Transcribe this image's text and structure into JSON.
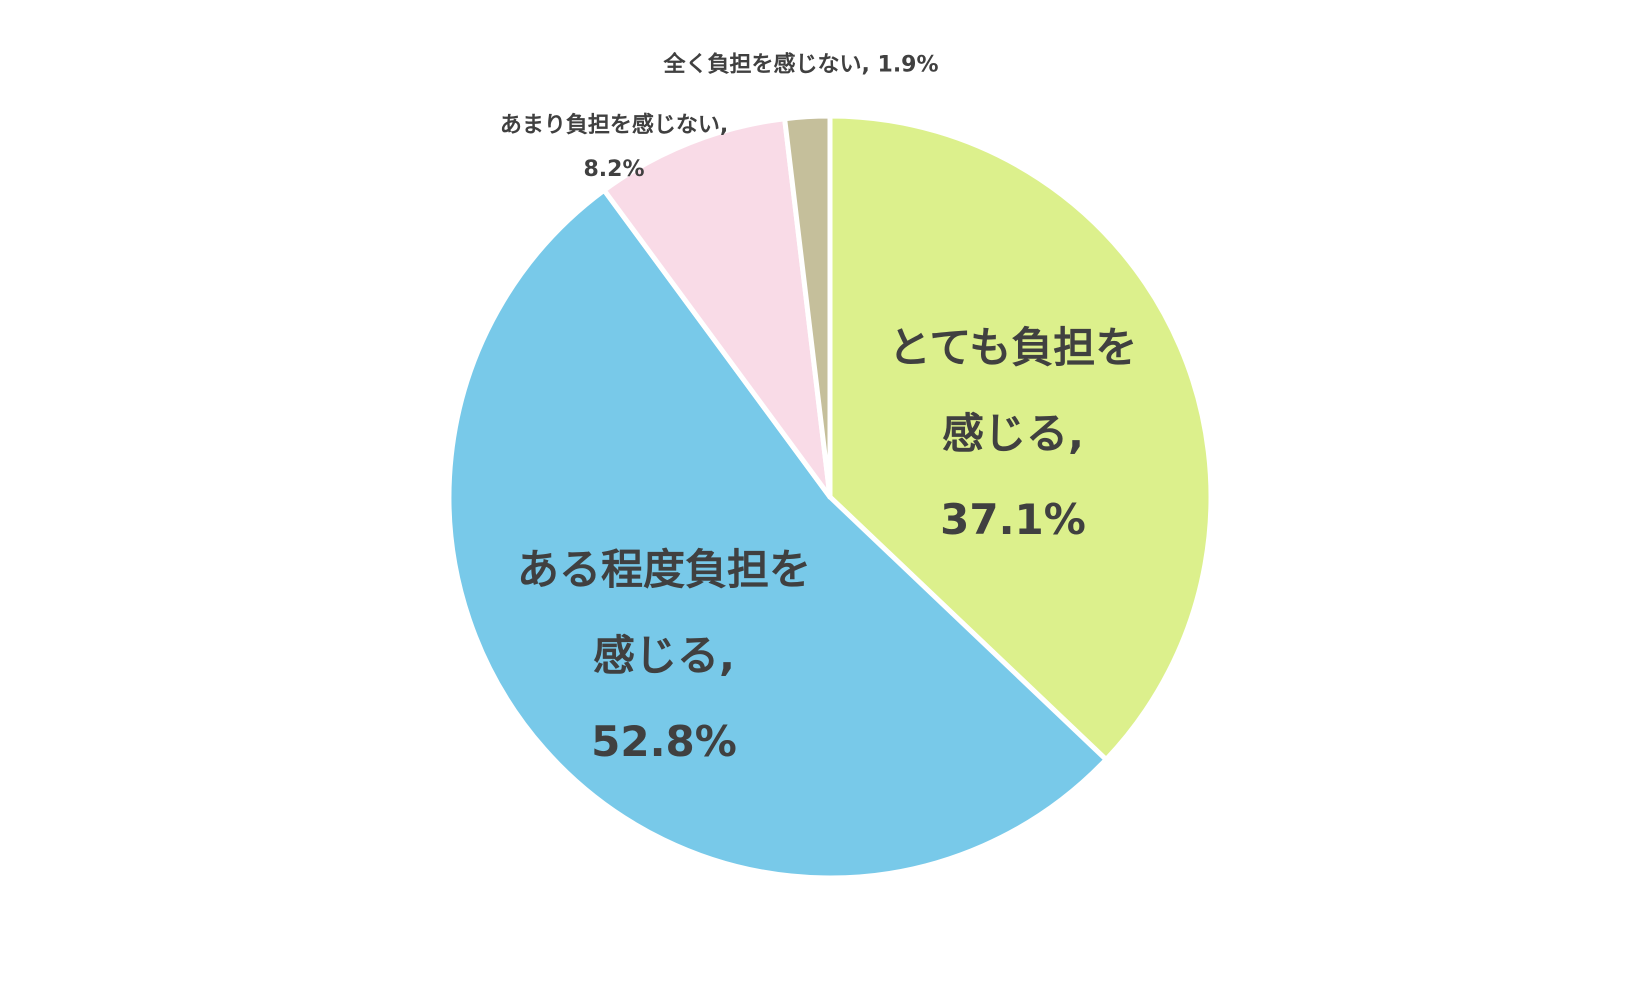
{
  "chart_data": {
    "type": "pie",
    "categories": [
      "とても負担を感じる,",
      "ある程度負担を感じる,",
      "あまり負担を感じない,",
      "全く負担を感じない,"
    ],
    "values": [
      37.1,
      52.8,
      8.2,
      1.9
    ],
    "value_labels": [
      "37.1%",
      "52.8%",
      "8.2%",
      "1.9%"
    ],
    "colors": [
      "#dcf08c",
      "#78c9e9",
      "#f9dbe7",
      "#c5bf9b"
    ],
    "start_angle": 0,
    "direction": "clockwise"
  }
}
